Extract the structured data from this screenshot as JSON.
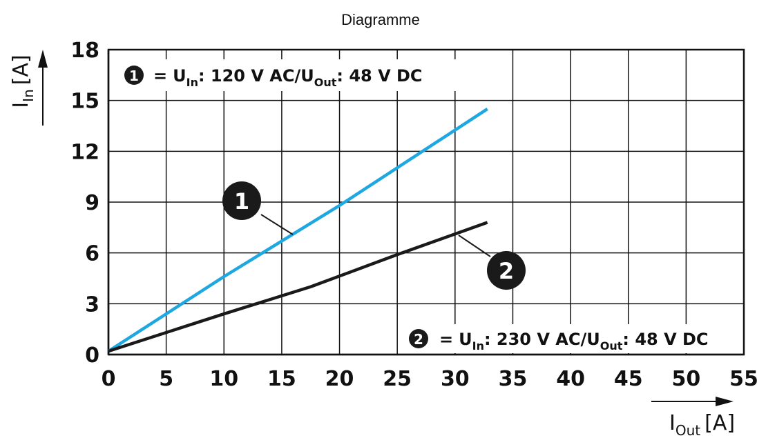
{
  "chart_data": {
    "type": "line",
    "title": "Diagramme",
    "xlabel": {
      "base": "I",
      "sub": "Out",
      "unit": "[A]"
    },
    "ylabel": {
      "base": "I",
      "sub": "In",
      "unit": "[A]"
    },
    "xlim": [
      0,
      55
    ],
    "ylim": [
      0,
      18
    ],
    "xticks": [
      "0",
      "5",
      "10",
      "15",
      "20",
      "25",
      "30",
      "35",
      "40",
      "45",
      "50",
      "55"
    ],
    "yticks": [
      "0",
      "3",
      "6",
      "9",
      "12",
      "15",
      "18"
    ],
    "grid": true,
    "series": [
      {
        "name": "1",
        "color": "#1ea7e1",
        "x": [
          0,
          10,
          20,
          32.8
        ],
        "y": [
          0.2,
          4.6,
          8.8,
          14.5
        ]
      },
      {
        "name": "2",
        "color": "#1a1a1a",
        "x": [
          0,
          10,
          17.5,
          25,
          32.8
        ],
        "y": [
          0.2,
          2.4,
          4.0,
          5.9,
          7.8
        ]
      }
    ],
    "legend": [
      {
        "marker": "1",
        "placement": "top-left",
        "eq": "=",
        "p1": "U",
        "p1sub": "In",
        "p1text": ": 120 V AC/U",
        "p2sub": "Out",
        "p2text": ": 48 V DC"
      },
      {
        "marker": "2",
        "placement": "bottom-right",
        "eq": "=",
        "p1": "U",
        "p1sub": "In",
        "p1text": ": 230 V AC/U",
        "p2sub": "Out",
        "p2text": ": 48 V DC"
      }
    ],
    "callouts": [
      {
        "label": "1",
        "series": 0
      },
      {
        "label": "2",
        "series": 1
      }
    ]
  }
}
